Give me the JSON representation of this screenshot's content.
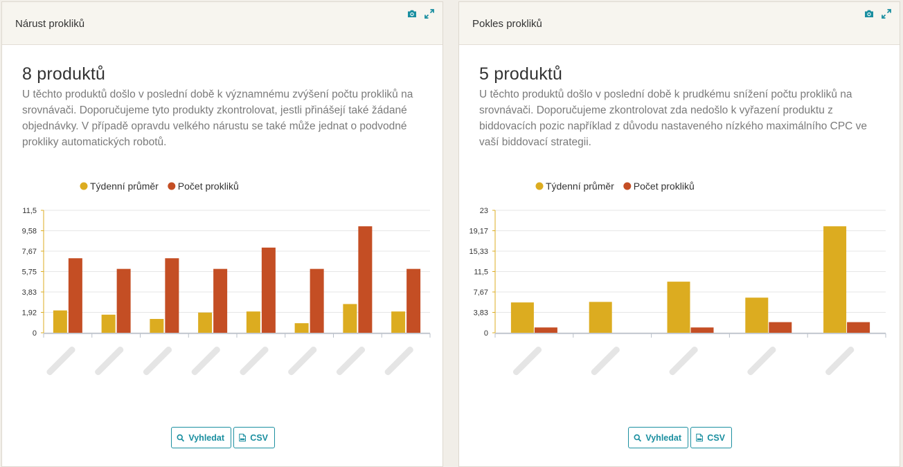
{
  "panels": [
    {
      "title": "Nárust prokliků",
      "count": "8 produktů",
      "description": "U těchto produktů došlo v poslední době k významnému zvýšení počtu prokliků na srovnávači. Doporučujeme tyto produkty zkontrolovat, jestli přinášejí také žádané objednávky. V případě opravdu velkého nárustu se také může jednat o podvodné prokliky automatických robotů.",
      "search_label": "Vyhledat",
      "csv_label": "CSV"
    },
    {
      "title": "Pokles prokliků",
      "count": "5 produktů",
      "description": "U těchto produktů došlo v poslední době k prudkému snížení počtu prokliků na srovnávači. Doporučujeme zkontrolovat zda nedošlo k vyřazení produktu z biddovacích pozic například z důvodu nastaveného nízkého maximálního CPC ve vaší biddovací strategii.",
      "search_label": "Vyhledat",
      "csv_label": "CSV"
    }
  ],
  "icons": [
    "camera-icon",
    "expand-icon",
    "search-icon",
    "csv-file-icon"
  ],
  "colors": {
    "weekly_avg": "#dcac20",
    "clicks": "#c44e24",
    "accent": "#1b8fa0"
  },
  "chart_data": [
    {
      "type": "bar",
      "legend": [
        "Týdenní průměr",
        "Počet prokliků"
      ],
      "legend_position": "top-center",
      "y_ticks": [
        "0",
        "1,92",
        "3,83",
        "5,75",
        "7,67",
        "9,58",
        "11,5"
      ],
      "ylim": [
        0,
        11.5
      ],
      "grid": true,
      "category_labels_visible": false,
      "series": [
        {
          "name": "Týdenní průměr",
          "values": [
            2.1,
            1.7,
            1.3,
            1.9,
            2.0,
            0.9,
            2.7,
            2.0
          ]
        },
        {
          "name": "Počet prokliků",
          "values": [
            7,
            6,
            7,
            6,
            8,
            6,
            10,
            6
          ]
        }
      ]
    },
    {
      "type": "bar",
      "legend": [
        "Týdenní průměr",
        "Počet prokliků"
      ],
      "legend_position": "top-center",
      "y_ticks": [
        "0",
        "3,83",
        "7,67",
        "11,5",
        "15,33",
        "19,17",
        "23"
      ],
      "ylim": [
        0,
        23
      ],
      "grid": true,
      "category_labels_visible": false,
      "series": [
        {
          "name": "Týdenní průměr",
          "values": [
            5.7,
            5.8,
            9.6,
            6.6,
            20.0
          ]
        },
        {
          "name": "Počet prokliků",
          "values": [
            1,
            0,
            1,
            2,
            2
          ]
        }
      ]
    }
  ]
}
